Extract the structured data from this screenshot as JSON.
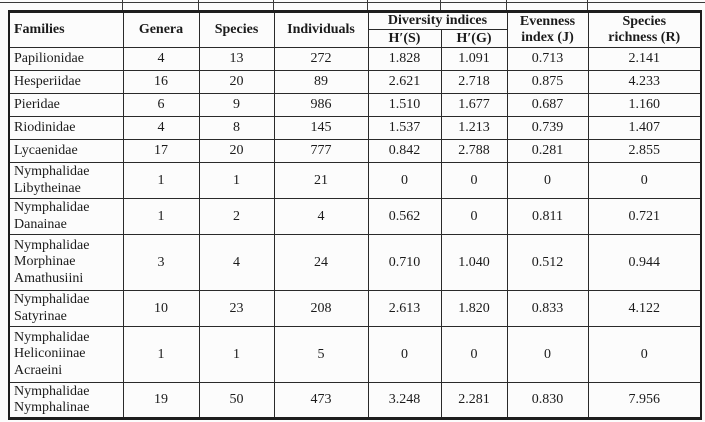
{
  "table": {
    "header": {
      "families": "Families",
      "genera": "Genera",
      "species": "Species",
      "individuals": "Individuals",
      "diversity_group": "Diversity indices",
      "h_s": "H′(S)",
      "h_g": "H′(G)",
      "evenness": "Evenness\nindex (J)",
      "richness": "Species\nrichness (R)"
    },
    "rows": [
      {
        "family": "Papilionidae",
        "values": [
          "4",
          "13",
          "272",
          "1.828",
          "1.091",
          "0.713",
          "2.141"
        ]
      },
      {
        "family": "Hesperiidae",
        "values": [
          "16",
          "20",
          "89",
          "2.621",
          "2.718",
          "0.875",
          "4.233"
        ]
      },
      {
        "family": "Pieridae",
        "values": [
          "6",
          "9",
          "986",
          "1.510",
          "1.677",
          "0.687",
          "1.160"
        ]
      },
      {
        "family": "Riodinidae",
        "values": [
          "4",
          "8",
          "145",
          "1.537",
          "1.213",
          "0.739",
          "1.407"
        ]
      },
      {
        "family": "Lycaenidae",
        "values": [
          "17",
          "20",
          "777",
          "0.842",
          "2.788",
          "0.281",
          "2.855"
        ]
      },
      {
        "family": "Nymphalidae\nLibytheinae",
        "values": [
          "1",
          "1",
          "21",
          "0",
          "0",
          "0",
          "0"
        ]
      },
      {
        "family": "Nymphalidae\nDanainae",
        "values": [
          "1",
          "2",
          "4",
          "0.562",
          "0",
          "0.811",
          "0.721"
        ]
      },
      {
        "family": "Nymphalidae\nMorphinae\nAmathusiini",
        "values": [
          "3",
          "4",
          "24",
          "0.710",
          "1.040",
          "0.512",
          "0.944"
        ]
      },
      {
        "family": "Nymphalidae\nSatyrinae",
        "values": [
          "10",
          "23",
          "208",
          "2.613",
          "1.820",
          "0.833",
          "4.122"
        ]
      },
      {
        "family": "Nymphalidae\nHeliconiinae\nAcraeini",
        "values": [
          "1",
          "1",
          "5",
          "0",
          "0",
          "0",
          "0"
        ]
      },
      {
        "family": "Nymphalidae\nNymphalinae",
        "values": [
          "19",
          "50",
          "473",
          "3.248",
          "2.281",
          "0.830",
          "7.956"
        ]
      }
    ]
  },
  "colors": {
    "text": "#1b1b1b",
    "border": "#2a2a2a",
    "background": "#fcfcfc"
  }
}
